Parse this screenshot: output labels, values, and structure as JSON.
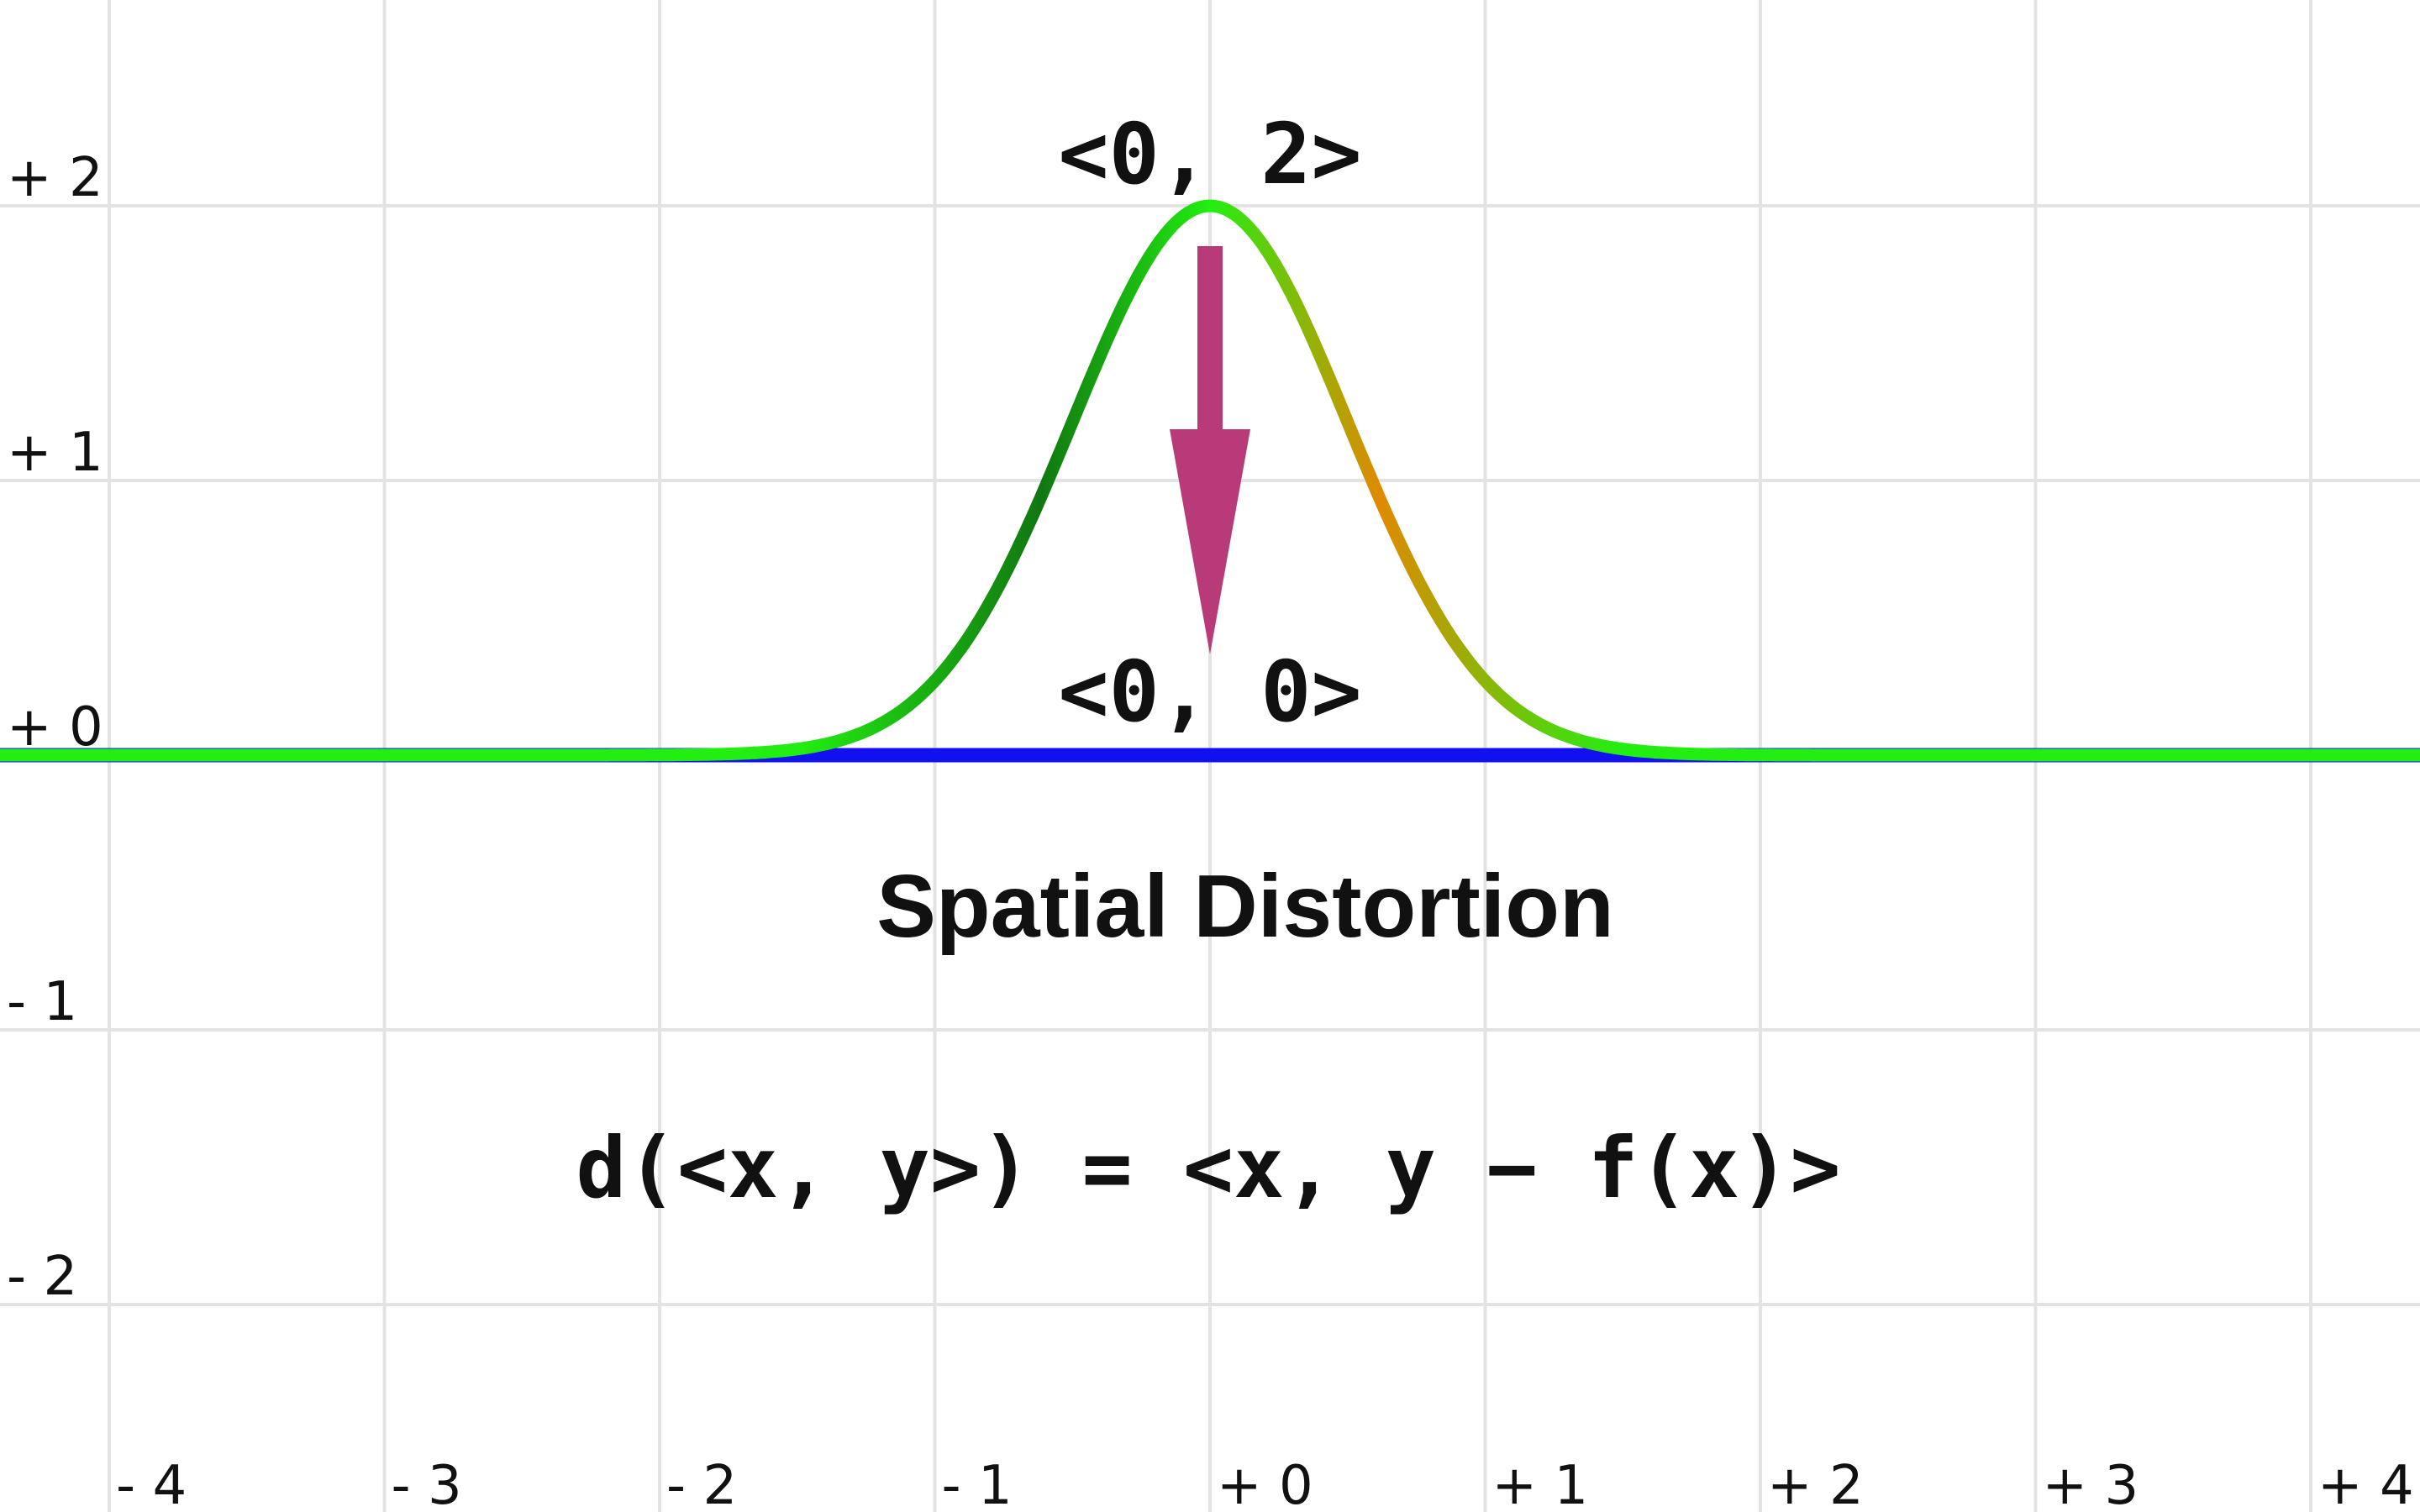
{
  "title": "Spatial Distortion",
  "formula": "d(<x, y>) = <x, y − f(x)>",
  "points": {
    "top_label": "<0, 2>",
    "bottom_label": "<0, 0>"
  },
  "axes": {
    "x_ticks": [
      {
        "value": -4,
        "label": "- 4"
      },
      {
        "value": -3,
        "label": "- 3"
      },
      {
        "value": -2,
        "label": "- 2"
      },
      {
        "value": -1,
        "label": "- 1"
      },
      {
        "value": 0,
        "label": "+ 0"
      },
      {
        "value": 1,
        "label": "+ 1"
      },
      {
        "value": 2,
        "label": "+ 2"
      },
      {
        "value": 3,
        "label": "+ 3"
      },
      {
        "value": 4,
        "label": "+ 4"
      }
    ],
    "y_ticks": [
      {
        "value": 2,
        "label": "+ 2"
      },
      {
        "value": 1,
        "label": "+ 1"
      },
      {
        "value": 0,
        "label": "+ 0"
      },
      {
        "value": -1,
        "label": "- 1"
      },
      {
        "value": -2,
        "label": "- 2"
      }
    ],
    "grid": true
  },
  "curve": {
    "function": "gaussian",
    "amplitude": 2,
    "center": 0
  },
  "arrow": {
    "from": [
      0,
      2
    ],
    "to": [
      0,
      0
    ]
  },
  "colors": {
    "grid": "#e3e3e3",
    "baseline": "#1010f0",
    "curve_light": "#22ee11",
    "curve_dark": "#117711",
    "curve_orange": "#e08a00",
    "arrow": "#b83a78",
    "text": "#111111"
  }
}
